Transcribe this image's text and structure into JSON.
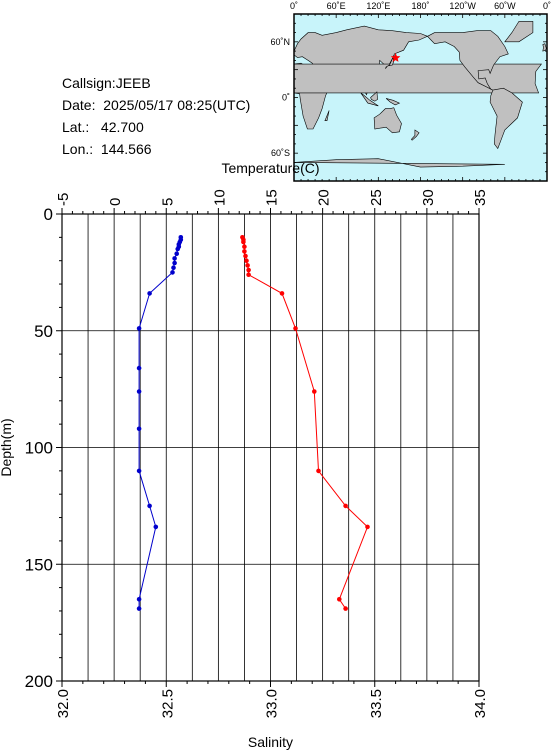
{
  "station": {
    "callsign_label": "Callsign:",
    "callsign": "JEEB",
    "date_label": "Date:",
    "date": "2025/05/17 08:25(UTC)",
    "lat_label": "Lat.:",
    "lat": "42.700",
    "lon_label": "Lon.:",
    "lon": "144.566"
  },
  "map": {
    "lon_labels": [
      "0˚",
      "60˚E",
      "120˚E",
      "180˚",
      "120˚W",
      "60˚W",
      "0˚"
    ],
    "lat_labels": [
      "60˚N",
      "0˚",
      "60˚S"
    ],
    "ocean_color": "#c8f4fa",
    "land_color": "#c0c0c0",
    "marker_color": "#ff0000",
    "marker": {
      "lat": 42.7,
      "lon": 144.566
    }
  },
  "chart_data": {
    "type": "line",
    "title": "",
    "ylabel": "Depth(m)",
    "ylim": [
      0,
      200
    ],
    "y_inverted": true,
    "yticks": [
      0,
      50,
      100,
      150,
      200
    ],
    "grid": true,
    "temperature_axis": {
      "label": "Temperature(C)",
      "position": "top",
      "range": [
        -5,
        35
      ],
      "ticks": [
        -5,
        0,
        5,
        10,
        15,
        20,
        25,
        30,
        35
      ]
    },
    "salinity_axis": {
      "label": "Salinity",
      "position": "bottom",
      "range": [
        32.0,
        34.0
      ],
      "ticks": [
        "32.0",
        "32.5",
        "33.0",
        "33.5",
        "34.0"
      ]
    },
    "series": [
      {
        "axis": "temperature",
        "color": "#ff0000",
        "depth": [
          10,
          11,
          12,
          14,
          16,
          18,
          20,
          22,
          24,
          26,
          34,
          49,
          76,
          110,
          125,
          134,
          165,
          169
        ],
        "values": [
          12.3,
          12.4,
          12.4,
          12.5,
          12.5,
          12.6,
          12.7,
          12.8,
          12.9,
          12.9,
          16.1,
          17.4,
          19.2,
          19.6,
          22.2,
          24.3,
          21.6,
          22.2
        ]
      },
      {
        "axis": "salinity",
        "color": "#0000cc",
        "depth": [
          10,
          11,
          12,
          13,
          14,
          15,
          17,
          19,
          21,
          23,
          25,
          34,
          49,
          66,
          76,
          92,
          110,
          125,
          134,
          165,
          169
        ],
        "values": [
          32.57,
          32.57,
          32.565,
          32.56,
          32.56,
          32.555,
          32.55,
          32.54,
          32.54,
          32.535,
          32.53,
          32.42,
          32.37,
          32.37,
          32.37,
          32.37,
          32.37,
          32.42,
          32.45,
          32.37,
          32.37
        ]
      }
    ]
  }
}
